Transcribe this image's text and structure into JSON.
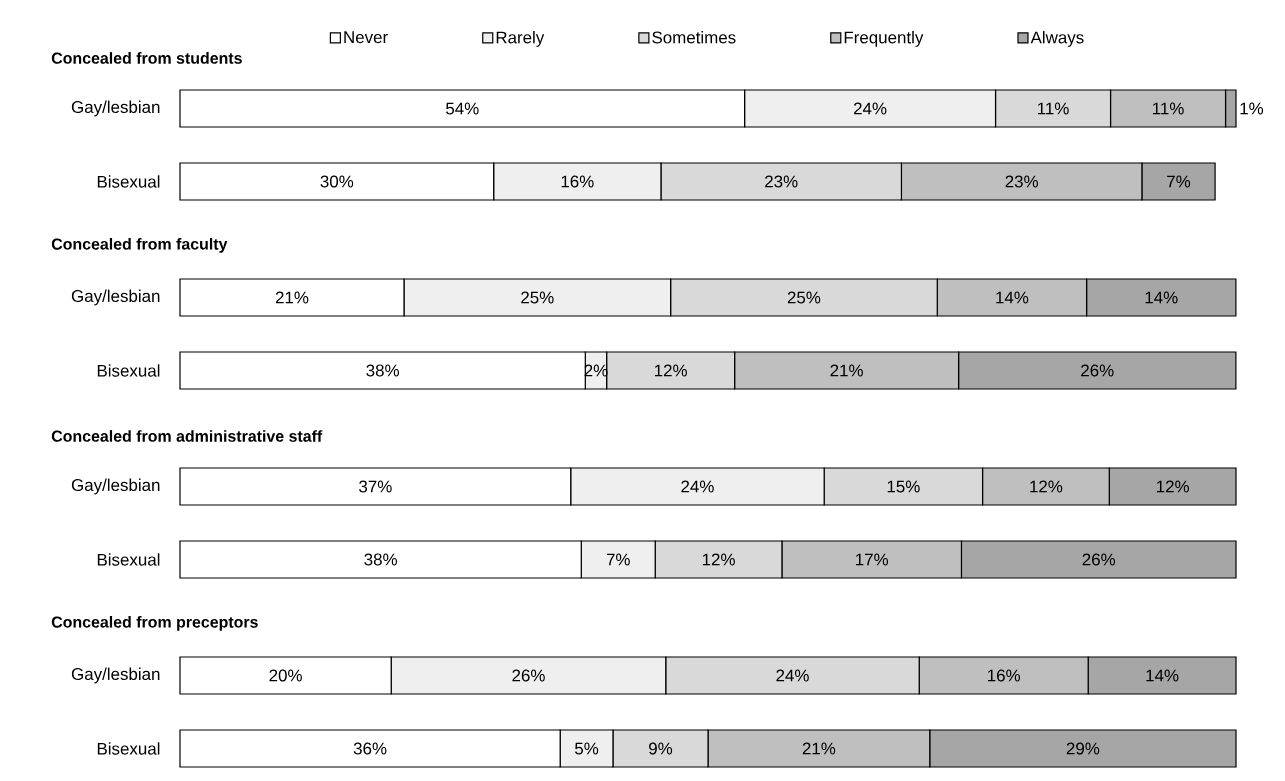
{
  "chart_data": [
    {
      "type": "bar",
      "orientation": "horizontal",
      "stacked": true,
      "title": "Concealed from students",
      "categories": [
        "Gay/lesbian",
        "Bisexual"
      ],
      "legend": "top",
      "series": [
        {
          "name": "Never",
          "color": "#ffffff",
          "values": [
            54,
            30
          ],
          "value_labels": [
            "54%",
            "30%"
          ]
        },
        {
          "name": "Rarely",
          "color": "#efefef",
          "values": [
            24,
            16
          ],
          "value_labels": [
            "24%",
            "16%"
          ]
        },
        {
          "name": "Sometimes",
          "color": "#d9d9d9",
          "values": [
            11,
            23
          ],
          "value_labels": [
            "11%",
            "23%"
          ]
        },
        {
          "name": "Frequently",
          "color": "#bfbfbf",
          "values": [
            11,
            23
          ],
          "value_labels": [
            "11%",
            "23%"
          ]
        },
        {
          "name": "Always",
          "color": "#a6a6a6",
          "values": [
            1,
            7
          ],
          "value_labels": [
            "1%",
            "7%"
          ]
        }
      ]
    },
    {
      "type": "bar",
      "orientation": "horizontal",
      "stacked": true,
      "title": "Concealed from faculty",
      "categories": [
        "Gay/lesbian",
        "Bisexual"
      ],
      "series": [
        {
          "color": "#ffffff",
          "values": [
            21,
            38
          ],
          "value_labels": [
            "21%",
            "38%"
          ]
        },
        {
          "color": "#efefef",
          "values": [
            25,
            2
          ],
          "value_labels": [
            "25%",
            "2%"
          ]
        },
        {
          "color": "#d9d9d9",
          "values": [
            25,
            12
          ],
          "value_labels": [
            "25%",
            "12%"
          ]
        },
        {
          "color": "#bfbfbf",
          "values": [
            14,
            21
          ],
          "value_labels": [
            "14%",
            "21%"
          ]
        },
        {
          "color": "#a6a6a6",
          "values": [
            14,
            26
          ],
          "value_labels": [
            "14%",
            "26%"
          ]
        }
      ]
    },
    {
      "type": "bar",
      "orientation": "horizontal",
      "stacked": true,
      "title": "Concealed from administrative staff",
      "categories": [
        "Gay/lesbian",
        "Bisexual"
      ],
      "series": [
        {
          "color": "#ffffff",
          "values": [
            37,
            38
          ],
          "value_labels": [
            "37%",
            "38%"
          ]
        },
        {
          "color": "#efefef",
          "values": [
            24,
            7
          ],
          "value_labels": [
            "24%",
            "7%"
          ]
        },
        {
          "color": "#d9d9d9",
          "values": [
            15,
            12
          ],
          "value_labels": [
            "15%",
            "12%"
          ]
        },
        {
          "color": "#bfbfbf",
          "values": [
            12,
            17
          ],
          "value_labels": [
            "12%",
            "17%"
          ]
        },
        {
          "color": "#a6a6a6",
          "values": [
            12,
            26
          ],
          "value_labels": [
            "12%",
            "26%"
          ]
        }
      ]
    },
    {
      "type": "bar",
      "orientation": "horizontal",
      "stacked": true,
      "title": "Concealed from preceptors",
      "categories": [
        "Gay/lesbian",
        "Bisexual"
      ],
      "series": [
        {
          "color": "#ffffff",
          "values": [
            20,
            36
          ],
          "value_labels": [
            "20%",
            "36%"
          ]
        },
        {
          "color": "#efefef",
          "values": [
            26,
            5
          ],
          "value_labels": [
            "26%",
            "5%"
          ]
        },
        {
          "color": "#d9d9d9",
          "values": [
            24,
            9
          ],
          "value_labels": [
            "24%",
            "9%"
          ]
        },
        {
          "color": "#bfbfbf",
          "values": [
            16,
            21
          ],
          "value_labels": [
            "16%",
            "21%"
          ]
        },
        {
          "color": "#a6a6a6",
          "values": [
            14,
            29
          ],
          "value_labels": [
            "14%",
            "29%"
          ]
        }
      ]
    }
  ]
}
